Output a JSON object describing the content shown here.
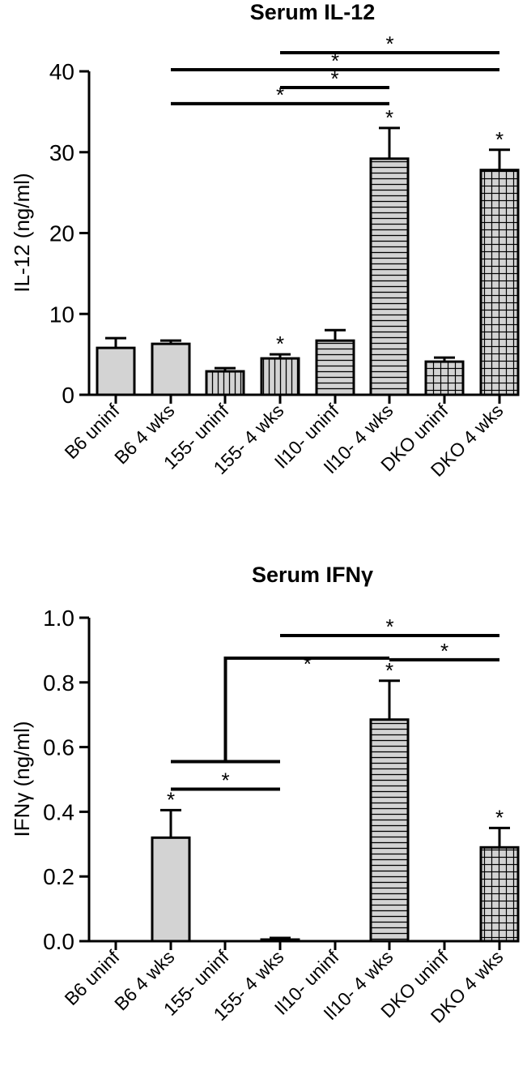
{
  "chart_data": [
    {
      "type": "bar",
      "title": "Serum IL-12",
      "ylabel": "IL-12 (ng/ml)",
      "xlabel": "",
      "ylim": [
        0,
        40
      ],
      "yticks": [
        0,
        10,
        20,
        30,
        40
      ],
      "tick_labels": [
        "0",
        "10",
        "20",
        "30",
        "40"
      ],
      "categories": [
        "B6 uninf",
        "B6 4 wks",
        "155- uninf",
        "155- 4 wks",
        "Il10- uninf",
        "Il10- 4 wks",
        "DKO uninf",
        "DKO 4 wks"
      ],
      "values": [
        5.8,
        6.3,
        2.9,
        4.5,
        6.7,
        29.2,
        4.1,
        27.8
      ],
      "errors": [
        1.2,
        0.4,
        0.4,
        0.5,
        1.3,
        3.8,
        0.5,
        2.5
      ],
      "patterns": [
        "solid",
        "solid",
        "vertical",
        "vertical",
        "horizontal",
        "horizontal",
        "grid",
        "grid"
      ],
      "bar_stars": [
        "",
        "",
        "",
        "*",
        "",
        "*",
        "",
        "*"
      ],
      "brackets": [
        {
          "from": "B6 4 wks",
          "to": "Il10- 4 wks",
          "y": 36,
          "label": "*"
        },
        {
          "from": "155- 4 wks",
          "to": "Il10- 4 wks",
          "y": 38,
          "label": "*"
        },
        {
          "from": "B6 4 wks",
          "to": "DKO 4 wks",
          "y": 40.2,
          "label": "*"
        },
        {
          "from": "155- 4 wks",
          "to": "DKO 4 wks",
          "y": 42.3,
          "label": "*"
        }
      ]
    },
    {
      "type": "bar",
      "title": "Serum IFNγ",
      "ylabel": "IFNγ (ng/ml)",
      "xlabel": "",
      "ylim": [
        0,
        1.0
      ],
      "yticks": [
        0,
        0.2,
        0.4,
        0.6,
        0.8,
        1.0
      ],
      "tick_labels": [
        "0.0",
        "0.2",
        "0.4",
        "0.6",
        "0.8",
        "1.0"
      ],
      "categories": [
        "B6 uninf",
        "B6 4 wks",
        "155- uninf",
        "155- 4 wks",
        "Il10- uninf",
        "Il10- 4 wks",
        "DKO uninf",
        "DKO 4 wks"
      ],
      "values": [
        0,
        0.32,
        0,
        0.005,
        0,
        0.685,
        0,
        0.29
      ],
      "errors": [
        0,
        0.085,
        0,
        0.005,
        0,
        0.12,
        0,
        0.06
      ],
      "patterns": [
        "solid",
        "solid",
        "vertical",
        "vertical",
        "horizontal",
        "horizontal",
        "grid",
        "grid"
      ],
      "bar_stars": [
        "",
        "*",
        "",
        "",
        "",
        "*",
        "",
        "*"
      ],
      "brackets": [
        {
          "from": "B6 4 wks",
          "to": "155- 4 wks",
          "y": 0.47,
          "label": "*"
        },
        {
          "from": "Il10- 4 wks",
          "to": "DKO 4 wks",
          "y": 0.87,
          "label": "*"
        },
        {
          "from": "155- 4 wks",
          "to": "DKO 4 wks",
          "y": 0.945,
          "label": "*"
        }
      ],
      "elbow": {
        "stem_from": "B6 4 wks",
        "stem_to": "155- 4 wks",
        "stem_y": 0.555,
        "top_y": 0.875,
        "to": "Il10- 4 wks",
        "label": "*"
      }
    }
  ]
}
